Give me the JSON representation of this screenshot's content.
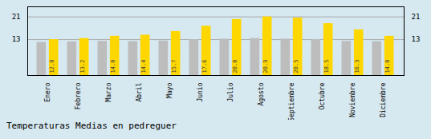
{
  "chart_data": {
    "type": "bar",
    "title": "Temperaturas Medias en pedreguer",
    "categories": [
      "Enero",
      "Febrero",
      "Marzo",
      "Abril",
      "Mayo",
      "Junio",
      "Julio",
      "Agosto",
      "Septiembre",
      "Octubre",
      "Noviembre",
      "Diciembre"
    ],
    "series": [
      {
        "color": "#BDBDBD",
        "values": [
          11.8,
          12.0,
          12.2,
          12.1,
          12.3,
          12.8,
          13.0,
          13.2,
          13.0,
          12.8,
          12.2,
          12.1
        ]
      },
      {
        "color": "#FFD700",
        "values": [
          12.8,
          13.2,
          14.0,
          14.4,
          15.7,
          17.6,
          20.0,
          20.9,
          20.5,
          18.5,
          16.3,
          14.0
        ],
        "data_labels": true,
        "value_labels": [
          "12.8",
          "13.2",
          "14.0",
          "14.4",
          "15.7",
          "17.6",
          "20.0",
          "20.9",
          "20.5",
          "18.5",
          "16.3",
          "14.0"
        ]
      }
    ],
    "ylim": [
      0,
      24.5
    ],
    "yticks": [
      12.8,
      20.9
    ],
    "grid": true
  }
}
